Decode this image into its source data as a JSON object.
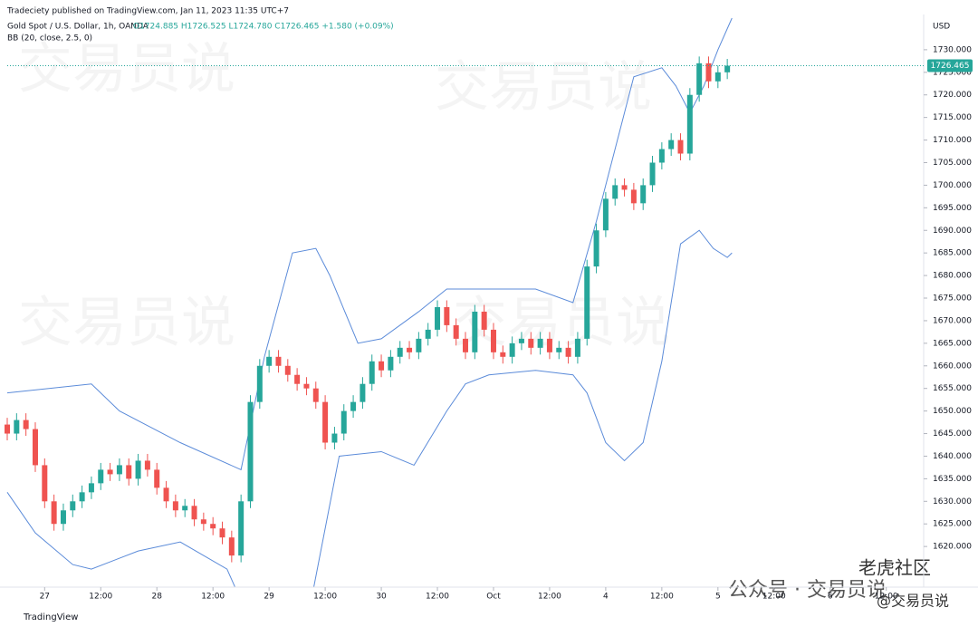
{
  "header": {
    "publisher": "Tradeciety published on TradingView.com, Jan 11, 2023 11:35 UTC+7",
    "symbol": "Gold Spot / U.S. Dollar, 1h, OANDA",
    "ohlc": "O1724.885 H1726.525 L1724.780 C1726.465 +1.580 (+0.09%)",
    "indicator": "BB (20, close, 2.5, 0)",
    "currency": "USD"
  },
  "footer": {
    "logo": "TradingView",
    "watermark": "公众号 · 交易员说",
    "badge": "老虎社区",
    "handle": "@交易员说"
  },
  "chart_data": {
    "type": "candlestick",
    "up_color": "#26a69a",
    "down_color": "#ef5350",
    "grid": false,
    "xlim": [
      16,
      212
    ],
    "ylim": [
      1611,
      1737.4
    ],
    "xticks": [
      {
        "value": 24,
        "label": "27"
      },
      {
        "value": 36,
        "label": "12:00"
      },
      {
        "value": 48,
        "label": "28"
      },
      {
        "value": 60,
        "label": "12:00"
      },
      {
        "value": 72,
        "label": "29"
      },
      {
        "value": 84,
        "label": "12:00"
      },
      {
        "value": 96,
        "label": "30"
      },
      {
        "value": 108,
        "label": "12:00"
      },
      {
        "value": 120,
        "label": "Oct"
      },
      {
        "value": 132,
        "label": "12:00"
      },
      {
        "value": 144,
        "label": "4"
      },
      {
        "value": 156,
        "label": "12:00"
      },
      {
        "value": 168,
        "label": "5"
      },
      {
        "value": 180,
        "label": "12:00"
      },
      {
        "value": 192,
        "label": "6"
      },
      {
        "value": 204,
        "label": "12:00"
      }
    ],
    "yticks": [
      {
        "value": 1620,
        "label": "1620.000"
      },
      {
        "value": 1625,
        "label": "1625.000"
      },
      {
        "value": 1630,
        "label": "1630.000"
      },
      {
        "value": 1635,
        "label": "1635.000"
      },
      {
        "value": 1640,
        "label": "1640.000"
      },
      {
        "value": 1645,
        "label": "1645.000"
      },
      {
        "value": 1650,
        "label": "1650.000"
      },
      {
        "value": 1655,
        "label": "1655.000"
      },
      {
        "value": 1660,
        "label": "1660.000"
      },
      {
        "value": 1665,
        "label": "1665.000"
      },
      {
        "value": 1670,
        "label": "1670.000"
      },
      {
        "value": 1675,
        "label": "1675.000"
      },
      {
        "value": 1680,
        "label": "1680.000"
      },
      {
        "value": 1685,
        "label": "1685.000"
      },
      {
        "value": 1690,
        "label": "1690.000"
      },
      {
        "value": 1695,
        "label": "1695.000"
      },
      {
        "value": 1700,
        "label": "1700.000"
      },
      {
        "value": 1705,
        "label": "1705.000"
      },
      {
        "value": 1710,
        "label": "1710.000"
      },
      {
        "value": 1715,
        "label": "1715.000"
      },
      {
        "value": 1720,
        "label": "1720.000"
      },
      {
        "value": 1725,
        "label": "1725.000"
      },
      {
        "value": 1730,
        "label": "1730.000"
      }
    ],
    "x": [
      16,
      18,
      20,
      22,
      24,
      26,
      28,
      30,
      32,
      34,
      36,
      38,
      40,
      42,
      44,
      46,
      48,
      50,
      52,
      54,
      56,
      58,
      60,
      62,
      64,
      66,
      68,
      70,
      72,
      74,
      76,
      78,
      80,
      82,
      84,
      86,
      88,
      90,
      92,
      94,
      96,
      98,
      100,
      102,
      104,
      106,
      108,
      110,
      112,
      114,
      116,
      118,
      120,
      122,
      124,
      126,
      128,
      130,
      132,
      134,
      136,
      138,
      140,
      142,
      144,
      146,
      148,
      150,
      152,
      154,
      156,
      158,
      160,
      162,
      164,
      166,
      168,
      170
    ],
    "open": [
      1647,
      1645,
      1648,
      1646,
      1638,
      1630,
      1625,
      1628,
      1630,
      1632,
      1634,
      1637,
      1636,
      1638,
      1635,
      1639,
      1637,
      1633,
      1630,
      1628,
      1629,
      1626,
      1625,
      1624,
      1622,
      1618,
      1630,
      1652,
      1660,
      1662,
      1660,
      1658,
      1656,
      1655,
      1652,
      1643,
      1645,
      1650,
      1652,
      1656,
      1661,
      1659,
      1662,
      1664,
      1663,
      1666,
      1668,
      1673,
      1669,
      1666,
      1663,
      1672,
      1668,
      1663,
      1662,
      1665,
      1666,
      1664,
      1666,
      1663,
      1664,
      1662,
      1666,
      1682,
      1690,
      1697,
      1700,
      1699,
      1696,
      1700,
      1705,
      1708,
      1710,
      1707,
      1720,
      1727,
      1723,
      1725
    ],
    "high": [
      1648.5,
      1649.5,
      1649.5,
      1647.5,
      1639.5,
      1631.5,
      1629.5,
      1631.5,
      1633.5,
      1635.5,
      1638.5,
      1638.5,
      1639.5,
      1639.5,
      1640.5,
      1640.5,
      1638.5,
      1634.5,
      1631.5,
      1630.5,
      1630.5,
      1627.5,
      1626.5,
      1625.5,
      1623.5,
      1631.5,
      1653.5,
      1661.5,
      1663.5,
      1663.5,
      1661.5,
      1659.5,
      1657.5,
      1656.5,
      1653.5,
      1646.5,
      1651.5,
      1653.5,
      1657.5,
      1662.5,
      1662.5,
      1663.5,
      1665.5,
      1665.5,
      1667.5,
      1669.5,
      1674.5,
      1674.5,
      1670.5,
      1667.5,
      1673.5,
      1673.5,
      1669.5,
      1664.5,
      1666.5,
      1667.5,
      1667.5,
      1667.5,
      1667.5,
      1665.5,
      1665.5,
      1667.5,
      1683.5,
      1691.5,
      1698.5,
      1701.5,
      1701.5,
      1700.5,
      1701.5,
      1706.5,
      1709.5,
      1711.5,
      1711.5,
      1721.5,
      1728.5,
      1728.5,
      1726.5,
      1727.965
    ],
    "low": [
      1643.5,
      1643.5,
      1644.5,
      1636.5,
      1628.5,
      1623.5,
      1623.5,
      1626.5,
      1628.5,
      1630.5,
      1632.5,
      1634.5,
      1634.5,
      1633.5,
      1633.5,
      1635.5,
      1631.5,
      1628.5,
      1626.5,
      1626.5,
      1624.5,
      1623.5,
      1622.5,
      1620.5,
      1616.5,
      1616.5,
      1628.5,
      1650.5,
      1658.5,
      1658.5,
      1656.5,
      1654.5,
      1653.5,
      1650.5,
      1641.5,
      1641.5,
      1643.5,
      1648.5,
      1650.5,
      1654.5,
      1657.5,
      1657.5,
      1660.5,
      1661.5,
      1661.5,
      1664.5,
      1666.5,
      1667.5,
      1664.5,
      1661.5,
      1661.5,
      1666.5,
      1661.5,
      1660.5,
      1660.5,
      1663.5,
      1662.5,
      1662.5,
      1661.5,
      1661.5,
      1660.5,
      1660.5,
      1664.5,
      1680.5,
      1688.5,
      1695.5,
      1697.5,
      1694.5,
      1694.5,
      1698.5,
      1703.5,
      1706.5,
      1705.5,
      1705.5,
      1718.5,
      1721.5,
      1721.5,
      1723.5
    ],
    "close": [
      1645,
      1648,
      1646,
      1638,
      1630,
      1625,
      1628,
      1630,
      1632,
      1634,
      1637,
      1636,
      1638,
      1635,
      1639,
      1637,
      1633,
      1630,
      1628,
      1629,
      1626,
      1625,
      1624,
      1622,
      1618,
      1630,
      1652,
      1660,
      1662,
      1660,
      1658,
      1656,
      1655,
      1652,
      1643,
      1645,
      1650,
      1652,
      1656,
      1661,
      1659,
      1662,
      1664,
      1663,
      1666,
      1668,
      1673,
      1669,
      1666,
      1663,
      1672,
      1668,
      1663,
      1662,
      1665,
      1666,
      1664,
      1666,
      1663,
      1664,
      1662,
      1666,
      1682,
      1690,
      1697,
      1700,
      1699,
      1696,
      1700,
      1705,
      1708,
      1710,
      1707,
      1720,
      1727,
      1723,
      1725,
      1726.465
    ],
    "bands": [
      {
        "color": "#5b8bd9",
        "x": [
          16,
          34,
          40,
          53,
          66,
          71,
          77,
          82,
          85,
          91,
          96,
          104,
          110,
          119,
          129,
          137,
          142,
          150,
          156,
          159,
          162,
          165,
          168,
          171
        ],
        "values": [
          1654,
          1656,
          1650,
          1643,
          1637,
          1662,
          1685,
          1686,
          1680,
          1665,
          1666,
          1672,
          1677,
          1677,
          1677,
          1674,
          1692,
          1724,
          1726,
          1722,
          1716,
          1722,
          1730,
          1737
        ]
      },
      {
        "color": "#5b8bd9",
        "x": [
          16,
          22,
          30,
          34,
          44,
          53,
          63,
          66,
          81,
          87,
          96,
          103,
          110,
          114,
          119,
          129,
          137,
          140,
          144,
          148,
          152,
          156,
          160,
          164,
          167,
          170,
          171
        ],
        "values": [
          1632,
          1623,
          1616,
          1615,
          1619,
          1621,
          1615,
          1608,
          1608,
          1640,
          1641,
          1638,
          1650,
          1656,
          1658,
          1659,
          1658,
          1654,
          1643,
          1639,
          1643,
          1661,
          1687,
          1690,
          1686,
          1684,
          1685
        ]
      }
    ]
  }
}
